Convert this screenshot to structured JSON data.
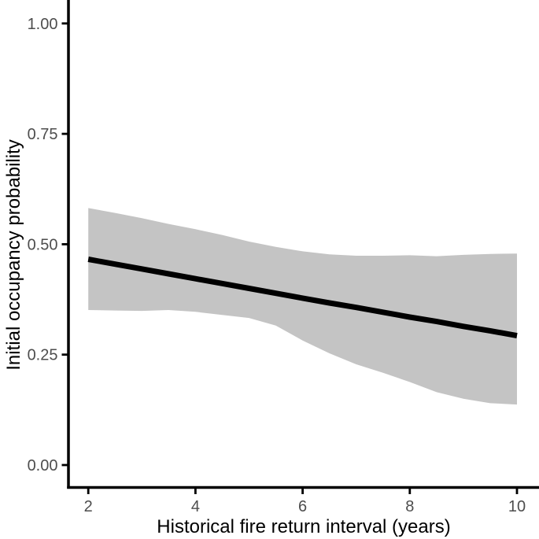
{
  "figure": {
    "background": "#ffffff"
  },
  "chart_data": {
    "type": "line",
    "title": "",
    "xlabel": "Historical fire return interval (years)",
    "ylabel": "Initial occupancy probability",
    "grid": false,
    "legend": false,
    "xlim": [
      1.63,
      10.41
    ],
    "ylim": [
      -0.05,
      1.05
    ],
    "x_ticks": [
      {
        "value": 2,
        "label": "2"
      },
      {
        "value": 4,
        "label": "4"
      },
      {
        "value": 6,
        "label": "6"
      },
      {
        "value": 8,
        "label": "8"
      },
      {
        "value": 10,
        "label": "10"
      }
    ],
    "y_ticks": [
      {
        "value": 0.0,
        "label": "0.00"
      },
      {
        "value": 0.25,
        "label": "0.25"
      },
      {
        "value": 0.5,
        "label": "0.50"
      },
      {
        "value": 0.75,
        "label": "0.75"
      },
      {
        "value": 1.0,
        "label": "1.00"
      }
    ],
    "x": [
      2,
      2.5,
      3,
      3.5,
      4,
      4.5,
      5,
      5.5,
      6,
      6.5,
      7,
      7.5,
      8,
      8.5,
      9,
      9.5,
      10
    ],
    "series": [
      {
        "name": "fitted_line",
        "kind": "line",
        "values": [
          0.466,
          0.455,
          0.444,
          0.433,
          0.422,
          0.411,
          0.4,
          0.389,
          0.378,
          0.367,
          0.357,
          0.346,
          0.335,
          0.325,
          0.314,
          0.304,
          0.293
        ]
      },
      {
        "name": "ci_upper",
        "kind": "ribbon_upper",
        "values": [
          0.582,
          0.571,
          0.559,
          0.546,
          0.534,
          0.521,
          0.506,
          0.494,
          0.484,
          0.477,
          0.474,
          0.474,
          0.475,
          0.473,
          0.476,
          0.478,
          0.479
        ]
      },
      {
        "name": "ci_lower",
        "kind": "ribbon_lower",
        "values": [
          0.351,
          0.35,
          0.349,
          0.351,
          0.347,
          0.34,
          0.333,
          0.316,
          0.282,
          0.253,
          0.228,
          0.209,
          0.188,
          0.165,
          0.15,
          0.14,
          0.137
        ]
      }
    ],
    "colors": {
      "line": "#000000",
      "ribbon_fill": "#c4c4c4",
      "axis": "#000000",
      "tick_label": "#4d4d4d",
      "axis_title": "#000000"
    }
  }
}
